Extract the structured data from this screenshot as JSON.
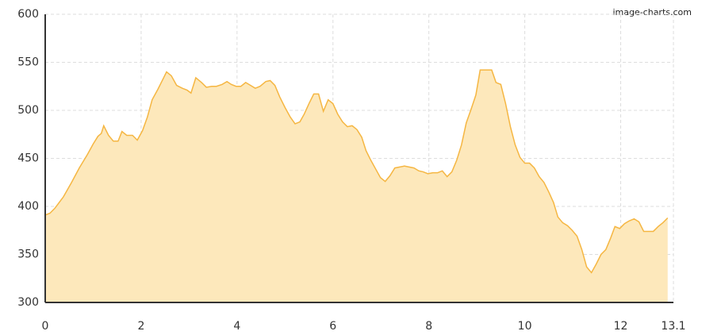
{
  "chart_data": {
    "type": "area",
    "watermark": "image-charts.com",
    "x": [
      0,
      0.1,
      0.2,
      0.38,
      0.55,
      0.71,
      0.88,
      1.0,
      1.1,
      1.17,
      1.22,
      1.32,
      1.42,
      1.52,
      1.6,
      1.7,
      1.82,
      1.92,
      2.03,
      2.13,
      2.23,
      2.35,
      2.45,
      2.53,
      2.63,
      2.74,
      2.86,
      2.96,
      3.04,
      3.14,
      3.26,
      3.36,
      3.47,
      3.57,
      3.69,
      3.79,
      3.88,
      3.98,
      4.08,
      4.18,
      4.28,
      4.38,
      4.48,
      4.6,
      4.69,
      4.79,
      4.89,
      5.0,
      5.11,
      5.21,
      5.31,
      5.4,
      5.5,
      5.6,
      5.7,
      5.8,
      5.9,
      6.0,
      6.1,
      6.2,
      6.3,
      6.4,
      6.5,
      6.6,
      6.69,
      6.79,
      6.89,
      6.99,
      7.09,
      7.19,
      7.29,
      7.39,
      7.49,
      7.59,
      7.69,
      7.79,
      7.88,
      7.98,
      8.08,
      8.18,
      8.28,
      8.38,
      8.48,
      8.58,
      8.68,
      8.78,
      8.88,
      8.98,
      9.07,
      9.17,
      9.31,
      9.4,
      9.5,
      9.6,
      9.7,
      9.8,
      9.9,
      10.0,
      10.1,
      10.2,
      10.3,
      10.4,
      10.5,
      10.6,
      10.69,
      10.79,
      10.89,
      10.99,
      11.09,
      11.19,
      11.29,
      11.39,
      11.49,
      11.59,
      11.69,
      11.79,
      11.88,
      11.98,
      12.08,
      12.18,
      12.28,
      12.38,
      12.48,
      12.58,
      12.68,
      12.78,
      12.88,
      12.98
    ],
    "series": [
      {
        "color": "#f5b642",
        "fill": "#fde8bb",
        "values": [
          391,
          393,
          398,
          410,
          425,
          440,
          454,
          465,
          473,
          476,
          484,
          474,
          468,
          468,
          478,
          474,
          474,
          469,
          479,
          493,
          511,
          522,
          532,
          540,
          536,
          526,
          523,
          521,
          518,
          534,
          529,
          524,
          525,
          525,
          527,
          530,
          527,
          525,
          525,
          529,
          526,
          523,
          525,
          530,
          531,
          526,
          514,
          503,
          493,
          486,
          488,
          496,
          507,
          517,
          517,
          499,
          511,
          507,
          496,
          488,
          483,
          484,
          480,
          472,
          458,
          448,
          439,
          430,
          426,
          432,
          440,
          441,
          442,
          441,
          440,
          437,
          436,
          434,
          435,
          435,
          437,
          431,
          436,
          448,
          464,
          487,
          501,
          516,
          542,
          542,
          542,
          529,
          527,
          507,
          483,
          464,
          451,
          445,
          445,
          440,
          431,
          425,
          415,
          404,
          389,
          383,
          380,
          375,
          369,
          355,
          337,
          331,
          340,
          350,
          355,
          367,
          379,
          377,
          382,
          385,
          387,
          384,
          374,
          374,
          374,
          379,
          383,
          388
        ]
      }
    ],
    "xlim": [
      0,
      13.1
    ],
    "xticks": [
      0,
      2,
      4,
      6,
      8,
      10,
      12,
      13.1
    ],
    "ylim": [
      300,
      600
    ],
    "yticks": [
      300,
      350,
      400,
      450,
      500,
      550,
      600
    ],
    "grid": true
  }
}
